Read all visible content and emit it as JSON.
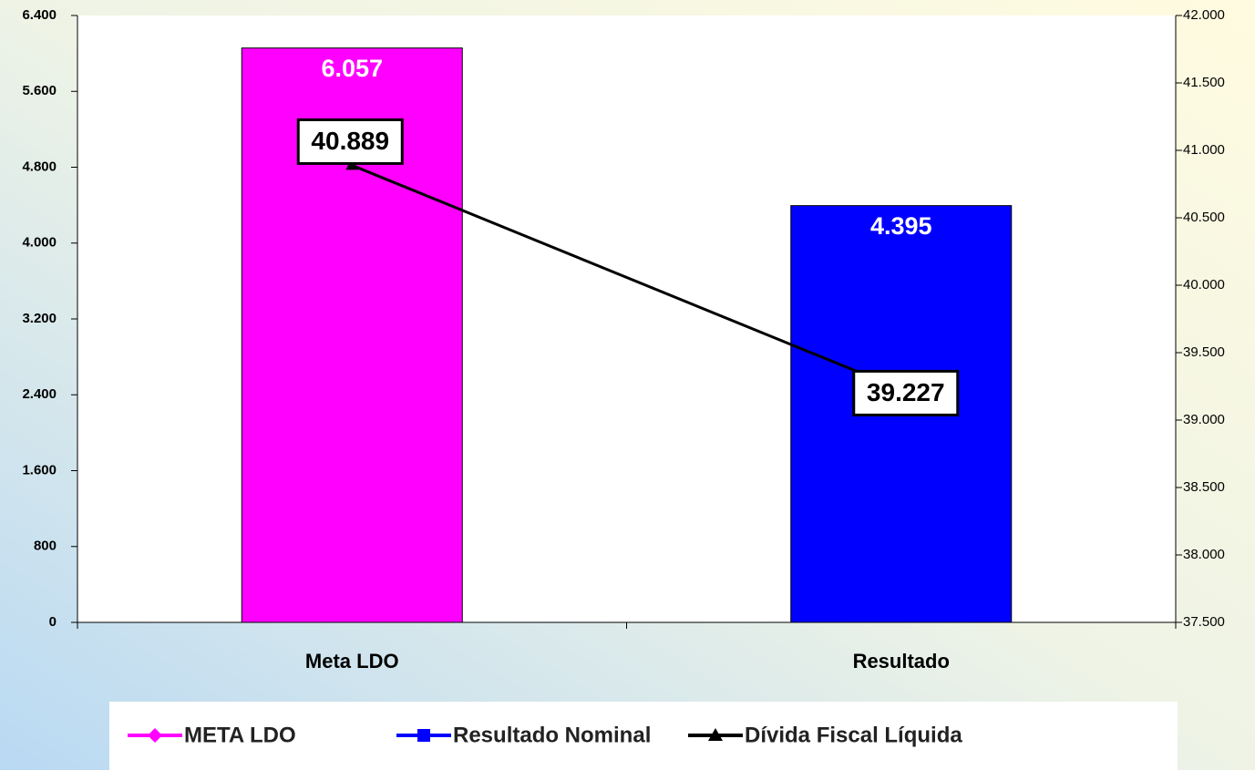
{
  "chart_data": {
    "type": "bar",
    "categories": [
      "Meta LDO",
      "Resultado"
    ],
    "series": [
      {
        "name": "META LDO",
        "color": "#ff00ff",
        "values": [
          6057,
          null
        ],
        "value_labels": [
          "6.057",
          null
        ]
      },
      {
        "name": "Resultado Nominal",
        "color": "#0000ff",
        "values": [
          null,
          4395
        ],
        "value_labels": [
          null,
          "4.395"
        ]
      },
      {
        "name": "Dívida Fiscal Líquida",
        "color": "#000000",
        "type": "line",
        "axis": "y2",
        "values": [
          40889,
          39227
        ],
        "value_labels": [
          "40.889",
          "39.227"
        ]
      }
    ],
    "ylim": [
      0,
      6400
    ],
    "yticks": [
      0,
      800,
      {
        "value": 1600,
        "label": "1.600"
      },
      {
        "value": 2400,
        "label": "2.400"
      },
      {
        "value": 3200,
        "label": "3.200"
      },
      {
        "value": 4000,
        "label": "4.000"
      },
      {
        "value": 4800,
        "label": "4.800"
      },
      {
        "value": 5600,
        "label": "5.600"
      },
      {
        "value": 6400,
        "label": "6.400"
      }
    ],
    "y2lim": [
      37500,
      42000
    ],
    "y2ticks": [
      {
        "value": 37500,
        "label": "37.500"
      },
      {
        "value": 38000,
        "label": "38.000"
      },
      {
        "value": 38500,
        "label": "38.500"
      },
      {
        "value": 39000,
        "label": "39.000"
      },
      {
        "value": 39500,
        "label": "39.500"
      },
      {
        "value": 40000,
        "label": "40.000"
      },
      {
        "value": 40500,
        "label": "40.500"
      },
      {
        "value": 41000,
        "label": "41.000"
      },
      {
        "value": 41500,
        "label": "41.500"
      },
      {
        "value": 42000,
        "label": "42.000"
      }
    ],
    "grid": false,
    "legend": "bottom"
  }
}
